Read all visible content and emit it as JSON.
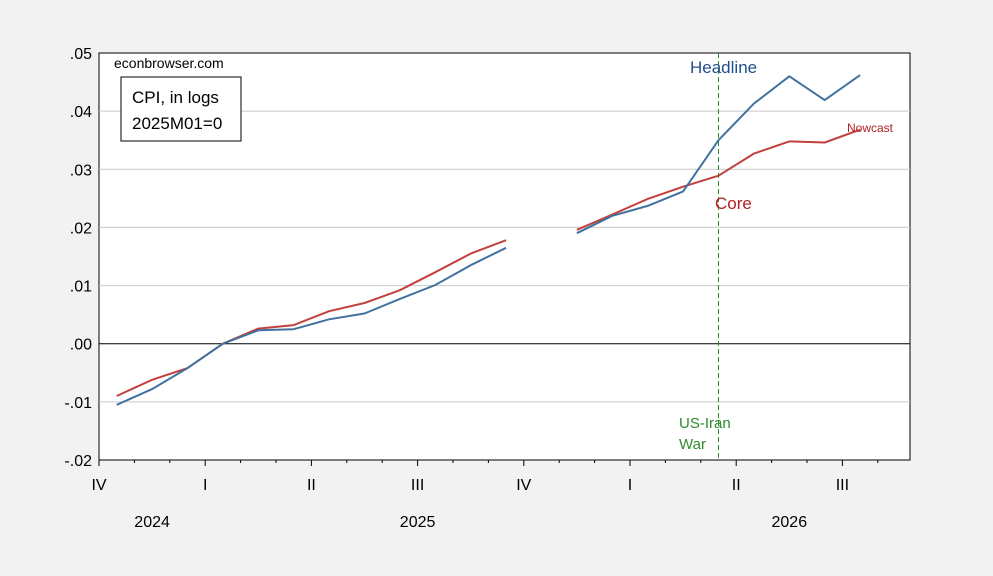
{
  "chart_data": {
    "type": "line",
    "source_note": "econbrowser.com",
    "info_box": [
      "CPI, in logs",
      "2025M01=0"
    ],
    "ylim": [
      -0.02,
      0.05
    ],
    "y_ticks": [
      {
        "value": 0.05,
        "label": ".05"
      },
      {
        "value": 0.04,
        "label": ".04"
      },
      {
        "value": 0.03,
        "label": ".03"
      },
      {
        "value": 0.02,
        "label": ".02"
      },
      {
        "value": 0.01,
        "label": ".01"
      },
      {
        "value": 0.0,
        "label": ".00"
      },
      {
        "value": -0.01,
        "label": "-.01"
      },
      {
        "value": -0.02,
        "label": "-.02"
      }
    ],
    "x_quarters": [
      "IV",
      "I",
      "II",
      "III",
      "IV",
      "I",
      "II",
      "III"
    ],
    "x_years": [
      {
        "label": "2024",
        "quarter_index": 0.5
      },
      {
        "label": "2025",
        "quarter_index": 3.0
      },
      {
        "label": "2026",
        "quarter_index": 6.5
      }
    ],
    "months": [
      "2024M10",
      "2024M11",
      "2024M12",
      "2025M01",
      "2025M02",
      "2025M03",
      "2025M04",
      "2025M05",
      "2025M06",
      "2025M07",
      "2025M08",
      "2025M09",
      "2025M10",
      "2025M11",
      "2025M12",
      "2026M01",
      "2026M02",
      "2026M03",
      "2026M04",
      "2026M05",
      "2026M06",
      "2026M07",
      "2026M08",
      "2026M09"
    ],
    "series": [
      {
        "name": "Headline",
        "color": "#41729f",
        "values": [
          -0.0105,
          -0.0078,
          -0.0042,
          0.0,
          0.0023,
          0.0025,
          0.0042,
          0.0052,
          0.0077,
          0.0101,
          0.0135,
          0.0165,
          null,
          0.019,
          0.022,
          0.0237,
          0.0262,
          0.035,
          0.0413,
          0.046,
          0.0419,
          0.0462,
          null,
          null
        ]
      },
      {
        "name": "Core",
        "color": "#c2413e",
        "values": [
          -0.009,
          -0.0062,
          -0.0042,
          0.0,
          0.0026,
          0.0032,
          0.0056,
          0.007,
          0.0092,
          0.0123,
          0.0155,
          0.0178,
          null,
          0.0196,
          0.0222,
          0.0249,
          0.027,
          0.0289,
          0.0327,
          0.0348,
          0.0346,
          0.0368,
          null,
          null
        ]
      }
    ],
    "event": {
      "month": "2026M03",
      "label_lines": [
        "US-Iran",
        "War"
      ],
      "color": "#2e8b2e"
    },
    "labels": {
      "headline": {
        "text": "Headline",
        "color": "#1f4f8a"
      },
      "core": {
        "text": "Core",
        "color": "#b22222"
      },
      "nowcast": {
        "text": "Nowcast",
        "color": "#b22222"
      }
    }
  }
}
